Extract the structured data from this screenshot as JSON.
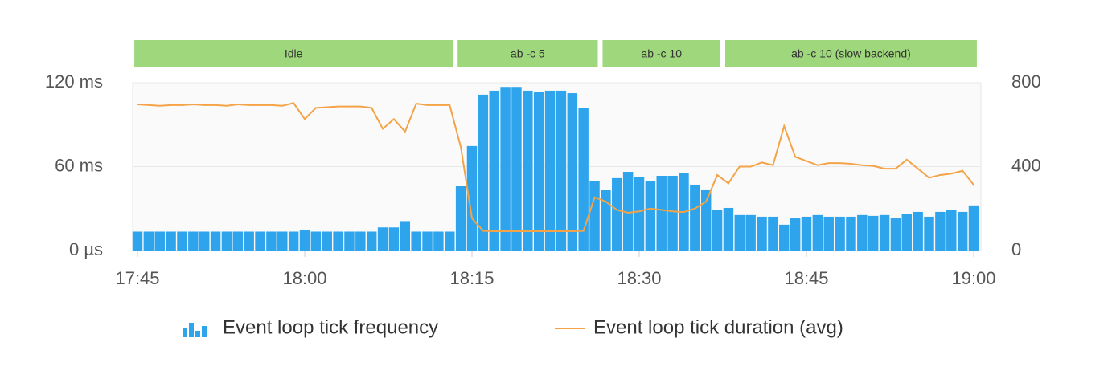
{
  "chart_data": {
    "type": "bar",
    "annotations": [
      {
        "label": "Idle",
        "start": "17:45",
        "end": "18:13"
      },
      {
        "label": "ab -c 5",
        "start": "18:14",
        "end": "18:26"
      },
      {
        "label": "ab -c 10",
        "start": "18:27",
        "end": "18:37"
      },
      {
        "label": "ab -c 10 (slow backend)",
        "start": "18:38",
        "end": "19:00"
      }
    ],
    "annotation_color": "#9fd77c",
    "x": [
      "17:45",
      "17:46",
      "17:47",
      "17:48",
      "17:49",
      "17:50",
      "17:51",
      "17:52",
      "17:53",
      "17:54",
      "17:55",
      "17:56",
      "17:57",
      "17:58",
      "17:59",
      "18:00",
      "18:01",
      "18:02",
      "18:03",
      "18:04",
      "18:05",
      "18:06",
      "18:07",
      "18:08",
      "18:09",
      "18:10",
      "18:11",
      "18:12",
      "18:13",
      "18:14",
      "18:15",
      "18:16",
      "18:17",
      "18:18",
      "18:19",
      "18:20",
      "18:21",
      "18:22",
      "18:23",
      "18:24",
      "18:25",
      "18:26",
      "18:27",
      "18:28",
      "18:29",
      "18:30",
      "18:31",
      "18:32",
      "18:33",
      "18:34",
      "18:35",
      "18:36",
      "18:37",
      "18:38",
      "18:39",
      "18:40",
      "18:41",
      "18:42",
      "18:43",
      "18:44",
      "18:45",
      "18:46",
      "18:47",
      "18:48",
      "18:49",
      "18:50",
      "18:51",
      "18:52",
      "18:53",
      "18:54",
      "18:55",
      "18:56",
      "18:57",
      "18:58",
      "18:59",
      "19:00"
    ],
    "series": [
      {
        "name": "Event loop tick frequency",
        "type": "bar",
        "axis": "y2",
        "color": "#2ea4ec",
        "values": [
          90,
          90,
          90,
          90,
          90,
          90,
          90,
          90,
          90,
          90,
          90,
          90,
          90,
          90,
          90,
          96,
          90,
          90,
          90,
          90,
          90,
          90,
          110,
          110,
          140,
          90,
          90,
          90,
          90,
          310,
          498,
          743,
          762,
          780,
          780,
          762,
          755,
          762,
          762,
          750,
          678,
          333,
          287,
          345,
          375,
          352,
          330,
          356,
          356,
          368,
          314,
          291,
          195,
          203,
          169,
          169,
          161,
          161,
          123,
          153,
          161,
          169,
          161,
          161,
          161,
          169,
          165,
          169,
          153,
          173,
          184,
          161,
          184,
          195,
          184,
          215
        ]
      },
      {
        "name": "Event loop tick duration (avg)",
        "type": "line",
        "color": "#f5a347",
        "values": [
          104.5,
          104,
          103.5,
          104,
          104,
          104.5,
          104,
          104,
          103.5,
          104.5,
          104,
          104,
          104,
          103.5,
          105.5,
          94,
          102,
          102.5,
          103,
          103,
          103,
          102,
          87,
          94,
          85,
          105,
          104,
          104,
          104,
          74,
          23,
          14,
          13.8,
          13.8,
          13.8,
          13.8,
          13.8,
          13.8,
          13.8,
          13.8,
          14,
          38,
          35,
          29,
          27,
          28,
          30,
          29,
          28,
          27.5,
          30,
          35,
          54,
          48,
          60,
          60,
          63,
          61,
          89,
          67,
          64,
          61,
          62.5,
          62.5,
          62,
          61,
          60.5,
          58.5,
          58.5,
          65,
          58.5,
          52,
          54,
          55,
          57,
          47
        ]
      }
    ],
    "xlim": [
      "17:45",
      "19:00"
    ],
    "xticks": [
      "17:45",
      "18:00",
      "18:15",
      "18:30",
      "18:45",
      "19:00"
    ],
    "ylim": [
      0,
      120
    ],
    "yticks": [
      {
        "value": 0,
        "label": "0 µs"
      },
      {
        "value": 60,
        "label": "60 ms"
      },
      {
        "value": 120,
        "label": "120 ms"
      }
    ],
    "y2lim": [
      0,
      800
    ],
    "y2ticks": [
      0,
      400,
      800
    ],
    "grid": true
  }
}
